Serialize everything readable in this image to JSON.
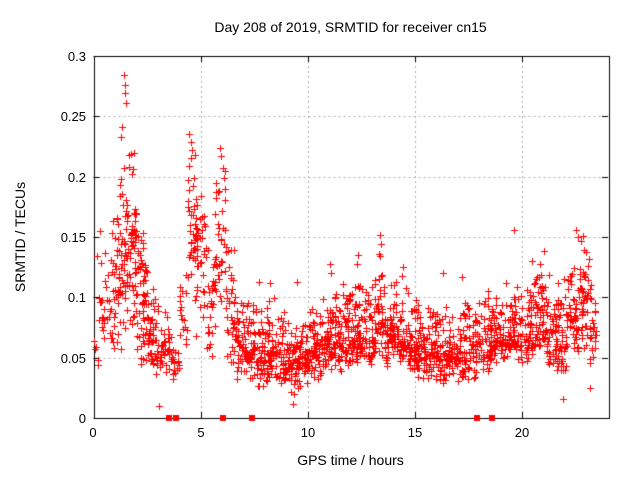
{
  "title": "Day 208 of 2019, SRMTID for receiver cn15",
  "chart_data": {
    "type": "scatter",
    "title": "Day 208 of 2019, SRMTID for receiver cn15",
    "xlabel": "GPS time / hours",
    "ylabel": "SRMTID / TECUs",
    "xlim": [
      0,
      24
    ],
    "ylim": [
      0,
      0.3
    ],
    "xticks": [
      0,
      5,
      10,
      15,
      20
    ],
    "yticks": [
      0,
      0.05,
      0.1,
      0.15,
      0.2,
      0.25,
      0.3
    ],
    "xtick_labels": [
      "0",
      "5",
      "10",
      "15",
      "20"
    ],
    "ytick_labels": [
      "0",
      "0.05",
      "0.1",
      "0.15",
      "0.2",
      "0.25",
      "0.3"
    ],
    "grid": {
      "show": true,
      "color": "#b0b0b0",
      "dash": [
        2,
        3
      ]
    },
    "border_color": "#000000",
    "background": "#ffffff",
    "seed": 20190208,
    "series": [
      {
        "name": "SRMTID",
        "marker": "plus",
        "color": "#ff0000",
        "marker_size": 7,
        "bins_note": "dense scatter approximated as [t_start,t_end,count,y_min,y_max,y_mode] in hours/TECUs",
        "density_bins": [
          [
            0.0,
            0.5,
            18,
            0.04,
            0.155,
            0.085
          ],
          [
            0.5,
            1.0,
            28,
            0.05,
            0.165,
            0.09
          ],
          [
            1.0,
            1.5,
            55,
            0.05,
            0.23,
            0.13
          ],
          [
            1.5,
            2.0,
            65,
            0.06,
            0.235,
            0.145
          ],
          [
            2.0,
            2.5,
            55,
            0.04,
            0.16,
            0.095
          ],
          [
            2.5,
            3.0,
            45,
            0.035,
            0.125,
            0.07
          ],
          [
            3.0,
            3.5,
            30,
            0.03,
            0.1,
            0.06
          ],
          [
            3.5,
            4.0,
            26,
            0.025,
            0.09,
            0.05
          ],
          [
            4.0,
            4.4,
            18,
            0.05,
            0.14,
            0.08
          ],
          [
            4.4,
            4.8,
            38,
            0.08,
            0.232,
            0.165
          ],
          [
            4.8,
            5.2,
            30,
            0.06,
            0.2,
            0.13
          ],
          [
            5.2,
            5.6,
            26,
            0.05,
            0.17,
            0.1
          ],
          [
            5.6,
            6.2,
            45,
            0.06,
            0.22,
            0.14
          ],
          [
            6.2,
            6.6,
            30,
            0.04,
            0.17,
            0.08
          ],
          [
            6.6,
            7.1,
            45,
            0.025,
            0.11,
            0.06
          ],
          [
            7.1,
            7.6,
            42,
            0.03,
            0.105,
            0.058
          ],
          [
            7.6,
            8.1,
            45,
            0.02,
            0.1,
            0.05
          ],
          [
            8.1,
            8.6,
            48,
            0.025,
            0.105,
            0.055
          ],
          [
            8.6,
            9.1,
            48,
            0.02,
            0.09,
            0.048
          ],
          [
            9.1,
            9.6,
            48,
            0.015,
            0.085,
            0.045
          ],
          [
            9.6,
            10.1,
            50,
            0.025,
            0.09,
            0.05
          ],
          [
            10.1,
            10.6,
            52,
            0.03,
            0.1,
            0.055
          ],
          [
            10.6,
            11.1,
            52,
            0.03,
            0.105,
            0.06
          ],
          [
            11.1,
            11.6,
            52,
            0.035,
            0.12,
            0.065
          ],
          [
            11.6,
            12.1,
            52,
            0.04,
            0.12,
            0.07
          ],
          [
            12.1,
            12.6,
            52,
            0.04,
            0.13,
            0.07
          ],
          [
            12.6,
            13.1,
            48,
            0.04,
            0.12,
            0.065
          ],
          [
            13.1,
            13.6,
            45,
            0.05,
            0.145,
            0.08
          ],
          [
            13.6,
            14.1,
            48,
            0.04,
            0.115,
            0.068
          ],
          [
            14.1,
            14.6,
            48,
            0.04,
            0.115,
            0.065
          ],
          [
            14.6,
            15.1,
            48,
            0.035,
            0.105,
            0.058
          ],
          [
            15.1,
            15.6,
            50,
            0.03,
            0.1,
            0.055
          ],
          [
            15.6,
            16.1,
            48,
            0.028,
            0.095,
            0.05
          ],
          [
            16.1,
            16.6,
            46,
            0.025,
            0.1,
            0.05
          ],
          [
            16.6,
            17.1,
            44,
            0.03,
            0.09,
            0.05
          ],
          [
            17.1,
            17.6,
            44,
            0.03,
            0.105,
            0.055
          ],
          [
            17.6,
            18.1,
            40,
            0.03,
            0.1,
            0.058
          ],
          [
            18.1,
            18.6,
            44,
            0.035,
            0.105,
            0.06
          ],
          [
            18.6,
            19.1,
            44,
            0.04,
            0.11,
            0.065
          ],
          [
            19.1,
            19.6,
            44,
            0.04,
            0.115,
            0.068
          ],
          [
            19.6,
            20.1,
            40,
            0.04,
            0.12,
            0.065
          ],
          [
            20.1,
            20.6,
            46,
            0.04,
            0.125,
            0.07
          ],
          [
            20.6,
            21.1,
            50,
            0.045,
            0.14,
            0.078
          ],
          [
            21.1,
            21.6,
            46,
            0.035,
            0.125,
            0.068
          ],
          [
            21.6,
            22.1,
            44,
            0.025,
            0.12,
            0.062
          ],
          [
            22.1,
            22.6,
            46,
            0.04,
            0.14,
            0.085
          ],
          [
            22.6,
            23.1,
            44,
            0.05,
            0.155,
            0.1
          ],
          [
            23.1,
            23.45,
            26,
            0.03,
            0.13,
            0.075
          ]
        ],
        "outlier_points": [
          [
            0.32,
            0.155
          ],
          [
            0.9,
            0.163
          ],
          [
            1.42,
            0.284
          ],
          [
            1.45,
            0.276
          ],
          [
            1.48,
            0.269
          ],
          [
            1.52,
            0.261
          ],
          [
            1.33,
            0.241
          ],
          [
            1.3,
            0.233
          ],
          [
            4.46,
            0.235
          ],
          [
            4.55,
            0.229
          ],
          [
            4.6,
            0.222
          ],
          [
            5.88,
            0.224
          ],
          [
            5.93,
            0.217
          ],
          [
            7.7,
            0.113
          ],
          [
            8.25,
            0.112
          ],
          [
            9.5,
            0.113
          ],
          [
            11.05,
            0.128
          ],
          [
            11.1,
            0.12
          ],
          [
            12.3,
            0.128
          ],
          [
            12.35,
            0.135
          ],
          [
            13.3,
            0.136
          ],
          [
            13.35,
            0.152
          ],
          [
            13.4,
            0.144
          ],
          [
            14.0,
            0.11
          ],
          [
            14.45,
            0.125
          ],
          [
            14.4,
            0.118
          ],
          [
            16.3,
            0.12
          ],
          [
            17.2,
            0.117
          ],
          [
            18.4,
            0.105
          ],
          [
            19.62,
            0.156
          ],
          [
            20.45,
            0.13
          ],
          [
            21.0,
            0.138
          ],
          [
            22.5,
            0.156
          ],
          [
            22.6,
            0.15
          ],
          [
            22.75,
            0.147
          ],
          [
            3.05,
            0.01
          ],
          [
            9.3,
            0.012
          ],
          [
            21.9,
            0.016
          ],
          [
            23.15,
            0.025
          ]
        ]
      },
      {
        "name": "on-axis flags",
        "marker": "filled-square",
        "color": "#ff0000",
        "marker_size": 6,
        "y": 0,
        "x": [
          3.52,
          3.85,
          6.04,
          7.39,
          17.88,
          18.58
        ]
      }
    ]
  }
}
